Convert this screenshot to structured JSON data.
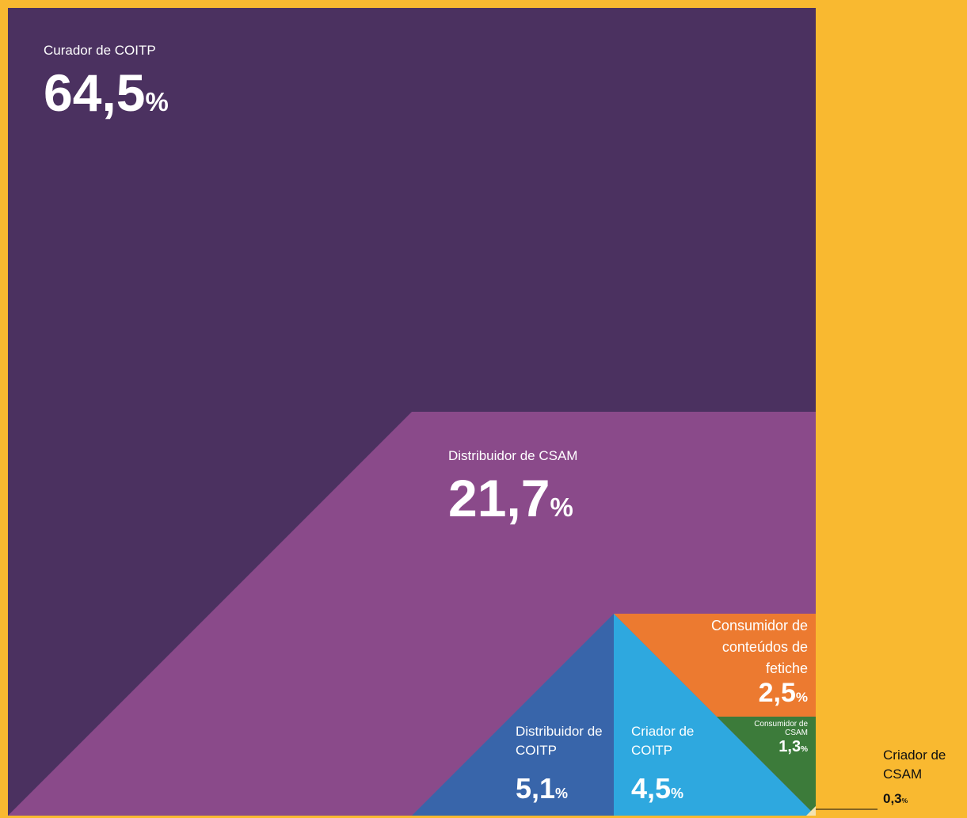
{
  "chart_data": {
    "type": "polygon",
    "categories": [
      "Curador de COITP",
      "Distribuidor de CSAM",
      "Distribuidor de COITP",
      "Criador de COITP",
      "Consumidor de conteúdos de fetiche",
      "Consumidor de CSAM",
      "Criador de CSAM"
    ],
    "values": [
      64.5,
      21.7,
      5.1,
      4.5,
      2.5,
      1.3,
      0.3
    ],
    "value_labels": [
      "64,5%",
      "21,7%",
      "5,1%",
      "4,5%",
      "2,5%",
      "1,3%",
      "0,3%"
    ],
    "colors": [
      "#4b3160",
      "#8a4a8a",
      "#3865aa",
      "#2ea8df",
      "#ec7a30",
      "#3c7b3a",
      "#f3e3b0"
    ]
  }
}
